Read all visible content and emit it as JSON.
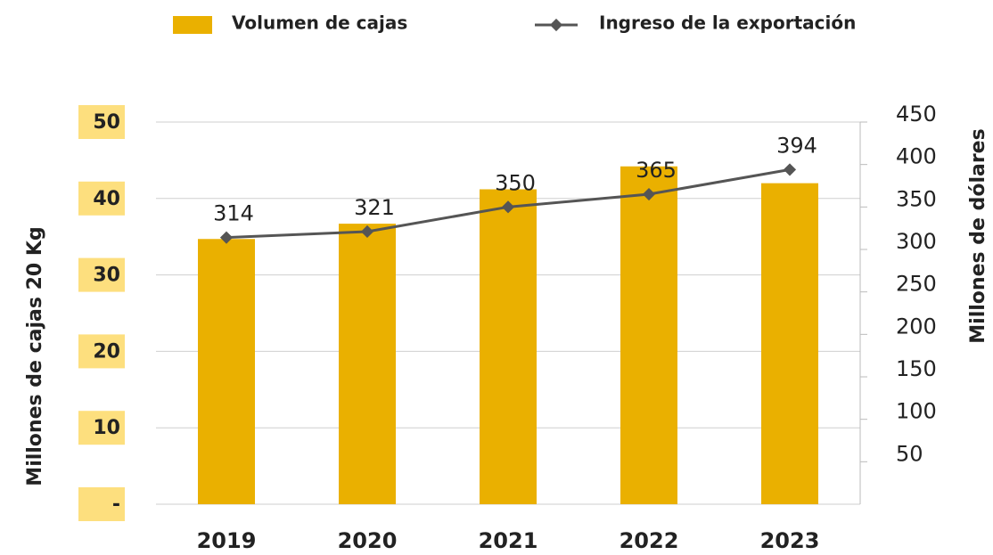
{
  "chart_data": {
    "type": "bar_line",
    "categories": [
      "2019",
      "2020",
      "2021",
      "2022",
      "2023"
    ],
    "series": [
      {
        "name": "Volumen de cajas",
        "type": "bar",
        "color": "#eab000",
        "values": [
          34.7,
          36.7,
          41.2,
          44.2,
          42.0
        ]
      },
      {
        "name": "Ingreso de la exportación",
        "type": "line",
        "axis": "y2",
        "color": "#555555",
        "values": [
          314,
          321,
          350,
          365,
          394
        ]
      }
    ],
    "ylabel": "Millones de cajas 20 Kg",
    "y2label": "Millones de dólares",
    "ylim": [
      0,
      50
    ],
    "yticks": [
      {
        "value": 0,
        "label": "-"
      },
      10,
      20,
      30,
      40,
      50
    ],
    "y2lim": [
      0,
      450
    ],
    "y2ticks": [
      50,
      100,
      150,
      200,
      250,
      300,
      350,
      400,
      450
    ],
    "grid": true,
    "legend": "top"
  }
}
